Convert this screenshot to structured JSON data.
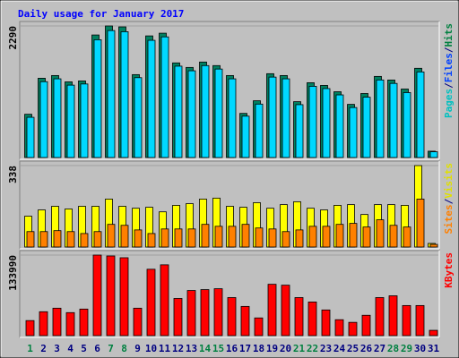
{
  "chart_data": [
    {
      "type": "bar",
      "title": "Daily usage for January 2017",
      "legend": [
        "Pages",
        "Files",
        "Hits"
      ],
      "legend_colors": [
        "#00c0c0",
        "#0040ff",
        "#008040"
      ],
      "legend_separator": "/",
      "ylim": [
        0,
        2290
      ],
      "yticks": [
        2290
      ],
      "series": [
        {
          "name": "Hits",
          "color": "#008060",
          "values": [
            753,
            1380,
            1427,
            1317,
            1333,
            2133,
            2290,
            2274,
            1443,
            2117,
            2164,
            1647,
            1568,
            1662,
            1600,
            1427,
            768,
            988,
            1459,
            1427,
            972,
            1302,
            1255,
            1145,
            925,
            1114,
            1412,
            1349,
            1192,
            1553,
            110
          ]
        },
        {
          "name": "Files",
          "color": "#00d8ff",
          "values": [
            700,
            1320,
            1370,
            1260,
            1280,
            2050,
            2210,
            2190,
            1390,
            2040,
            2100,
            1590,
            1510,
            1600,
            1540,
            1370,
            720,
            930,
            1400,
            1370,
            920,
            1240,
            1200,
            1090,
            870,
            1050,
            1350,
            1290,
            1130,
            1490,
            100
          ]
        }
      ]
    },
    {
      "type": "bar",
      "legend": [
        "Sites",
        "Visits"
      ],
      "legend_colors": [
        "#ff8000",
        "#e0e000"
      ],
      "legend_separator": "/",
      "ylim": [
        0,
        338
      ],
      "yticks": [
        338
      ],
      "series": [
        {
          "name": "Visits",
          "color": "#ffff00",
          "values": [
            128,
            154,
            169,
            158,
            169,
            169,
            199,
            169,
            161,
            165,
            146,
            173,
            180,
            199,
            203,
            169,
            165,
            184,
            161,
            176,
            188,
            161,
            154,
            173,
            176,
            135,
            176,
            176,
            173,
            338,
            15
          ]
        },
        {
          "name": "Sites",
          "color": "#ff8000",
          "values": [
            64,
            64,
            68,
            64,
            56,
            64,
            94,
            90,
            71,
            56,
            75,
            75,
            75,
            94,
            86,
            86,
            94,
            79,
            75,
            64,
            71,
            86,
            86,
            94,
            98,
            83,
            113,
            90,
            83,
            199,
            11
          ]
        }
      ]
    },
    {
      "type": "bar",
      "legend": [
        "KBytes"
      ],
      "legend_colors": [
        "#ff0000"
      ],
      "ylim": [
        0,
        133990
      ],
      "yticks": [
        133990
      ],
      "categories": [
        "1",
        "2",
        "3",
        "4",
        "5",
        "6",
        "7",
        "8",
        "9",
        "10",
        "11",
        "12",
        "13",
        "14",
        "15",
        "16",
        "17",
        "18",
        "19",
        "20",
        "21",
        "22",
        "23",
        "24",
        "25",
        "26",
        "27",
        "28",
        "29",
        "30",
        "31"
      ],
      "category_colors": [
        "#008040",
        "#000080",
        "#000080",
        "#000080",
        "#000080",
        "#000080",
        "#008040",
        "#008040",
        "#000080",
        "#000080",
        "#000080",
        "#000080",
        "#000080",
        "#008040",
        "#008040",
        "#000080",
        "#000080",
        "#000080",
        "#000080",
        "#000080",
        "#008040",
        "#008040",
        "#000080",
        "#000080",
        "#000080",
        "#000080",
        "#000080",
        "#008040",
        "#008040",
        "#000080",
        "#000080"
      ],
      "series": [
        {
          "name": "KBytes",
          "color": "#ff0000",
          "values": [
            25030,
            39760,
            45650,
            38280,
            44170,
            133990,
            132520,
            129570,
            45650,
            110430,
            117790,
            61840,
            75100,
            76570,
            78040,
            63320,
            48590,
            29450,
            85400,
            83930,
            63320,
            55960,
            42710,
            26500,
            22090,
            33870,
            63320,
            66260,
            50060,
            50060,
            8840
          ]
        }
      ]
    }
  ]
}
